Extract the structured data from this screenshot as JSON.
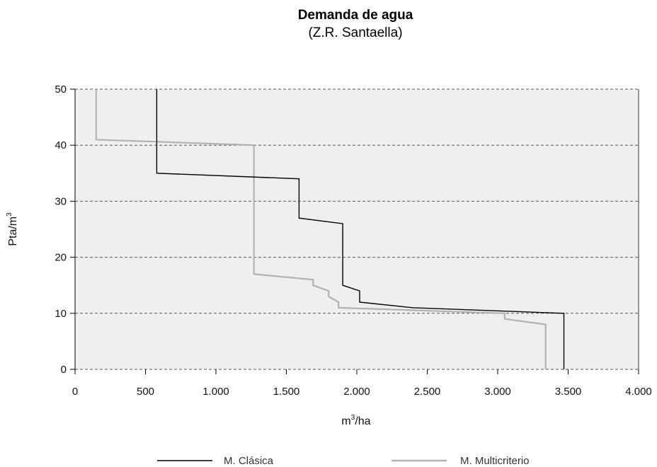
{
  "chart_data": {
    "type": "line",
    "title": "Demanda de agua",
    "subtitle": "(Z.R. Santaella)",
    "xlabel": "m³/ha",
    "ylabel": "Pta/m³",
    "xlim": [
      0,
      4000
    ],
    "ylim": [
      0,
      50
    ],
    "xticks": [
      "0",
      "500",
      "1.000",
      "1.500",
      "2.000",
      "2.500",
      "3.000",
      "3.500",
      "4.000"
    ],
    "yticks": [
      "0",
      "10",
      "20",
      "30",
      "40",
      "50"
    ],
    "grid": "horizontal dashed",
    "legend_position": "bottom",
    "colors": {
      "plot_bg": "#efefef",
      "classic": "#000000",
      "multi": "#b3b3b3",
      "grid": "#555555"
    },
    "series": [
      {
        "name": "M. Clásica",
        "x": [
          580,
          580,
          1590,
          1590,
          1900,
          1900,
          2020,
          2020,
          2400,
          3470,
          3470
        ],
        "y": [
          50,
          35,
          34,
          27,
          26,
          15,
          14,
          12,
          11,
          10,
          0
        ]
      },
      {
        "name": "M. Multicriterio",
        "x": [
          150,
          150,
          1270,
          1270,
          1690,
          1690,
          1800,
          1800,
          1870,
          1870,
          3050,
          3050,
          3340,
          3340
        ],
        "y": [
          50,
          41,
          40,
          17,
          16,
          15,
          14,
          13,
          12,
          11,
          10,
          9,
          8,
          0
        ]
      }
    ]
  }
}
